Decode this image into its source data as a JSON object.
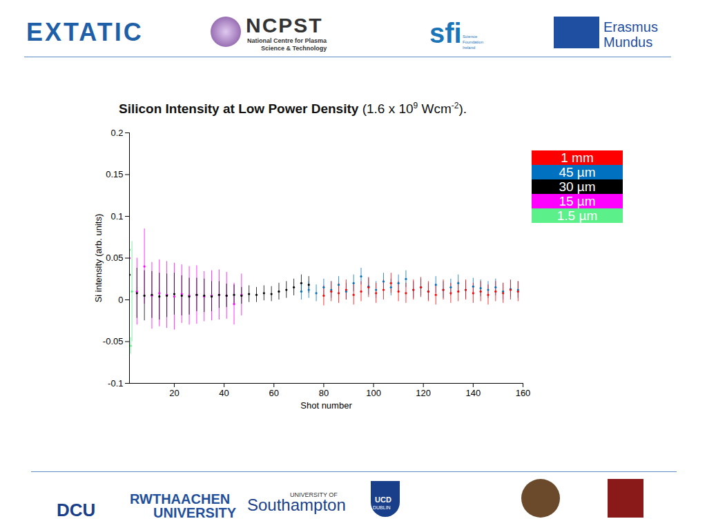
{
  "header_logos": [
    "EXTATIC",
    "NCPST",
    "National Centre for Plasma",
    "Science & Technology",
    "sfi",
    "Science",
    "Foundation",
    "Ireland",
    "Erasmus",
    "Mundus"
  ],
  "footer_logos": [
    "DCU",
    "RWTHAACHEN",
    "UNIVERSITY",
    "UNIVERSITY OF",
    "Southampton",
    "UCD",
    "DUBLIN"
  ],
  "chart_data": {
    "type": "scatter",
    "title": "Silicon Intensity at Low Power Density",
    "title_suffix": {
      "open": "(1.6 x 10",
      "exponent": "9",
      "unit": " Wcm",
      "unit_exponent": "-2",
      "close": ")."
    },
    "x_label": "Shot number",
    "y_label": "Si intensity (arb. units)",
    "xlim": [
      2,
      160
    ],
    "xticks": [
      20,
      40,
      60,
      80,
      100,
      120,
      140,
      160
    ],
    "ylim": [
      -0.1,
      0.2
    ],
    "yticks": [
      -0.1,
      -0.05,
      0,
      0.05,
      0.1,
      0.15,
      0.2
    ],
    "grid": false,
    "legend": "top-right",
    "marker": "dot",
    "series": [
      {
        "name": "1 mm",
        "color": "#ff0000",
        "x": [
          80,
          83,
          86,
          89,
          92,
          95,
          98,
          101,
          104,
          107,
          110,
          113,
          116,
          119,
          122,
          125,
          128,
          131,
          134,
          137,
          140,
          143,
          146,
          149,
          152,
          155,
          158
        ],
        "values": [
          0.005,
          0.01,
          0.008,
          0.012,
          0.006,
          0.01,
          0.015,
          0.008,
          0.012,
          0.02,
          0.01,
          0.008,
          0.012,
          0.015,
          0.01,
          0.006,
          0.012,
          0.008,
          0.01,
          0.012,
          0.008,
          0.01,
          0.006,
          0.01,
          0.008,
          0.012,
          0.01
        ],
        "errors": [
          0.012,
          0.012,
          0.012,
          0.012,
          0.012,
          0.012,
          0.012,
          0.012,
          0.012,
          0.012,
          0.012,
          0.012,
          0.012,
          0.012,
          0.012,
          0.012,
          0.012,
          0.012,
          0.012,
          0.012,
          0.012,
          0.012,
          0.012,
          0.012,
          0.012,
          0.012,
          0.012
        ]
      },
      {
        "name": "45 µm",
        "color": "#0070c0",
        "x": [
          71,
          74,
          77,
          80,
          83,
          86,
          89,
          92,
          95,
          98,
          101,
          104,
          107,
          110,
          113,
          116,
          119,
          122,
          125,
          128,
          131,
          134,
          137,
          140,
          143,
          146,
          149,
          152,
          155,
          158
        ],
        "values": [
          0.01,
          0.012,
          0.008,
          0.015,
          0.012,
          0.018,
          0.01,
          0.02,
          0.028,
          0.016,
          0.012,
          0.022,
          0.015,
          0.02,
          0.025,
          0.012,
          0.015,
          0.01,
          0.018,
          0.012,
          0.015,
          0.02,
          0.012,
          0.016,
          0.014,
          0.012,
          0.015,
          0.01,
          0.013,
          0.012
        ],
        "errors": [
          0.01,
          0.01,
          0.01,
          0.01,
          0.01,
          0.01,
          0.01,
          0.01,
          0.01,
          0.01,
          0.01,
          0.01,
          0.01,
          0.01,
          0.01,
          0.01,
          0.01,
          0.01,
          0.01,
          0.01,
          0.01,
          0.01,
          0.01,
          0.01,
          0.01,
          0.01,
          0.01,
          0.01,
          0.01,
          0.01
        ]
      },
      {
        "name": "30 µm",
        "color": "#000000",
        "x": [
          2,
          5,
          8,
          11,
          14,
          17,
          20,
          23,
          26,
          29,
          32,
          35,
          38,
          41,
          44,
          47,
          50,
          53,
          56,
          59,
          62,
          65,
          68,
          71,
          74
        ],
        "values": [
          0.03,
          0.008,
          0.005,
          0.006,
          0.004,
          0.005,
          0.007,
          0.005,
          0.004,
          0.006,
          0.005,
          0.004,
          0.006,
          0.005,
          0.006,
          0.005,
          0.007,
          0.006,
          0.008,
          0.007,
          0.01,
          0.012,
          0.015,
          0.02,
          0.018
        ],
        "errors": [
          0.05,
          0.03,
          0.03,
          0.028,
          0.028,
          0.026,
          0.025,
          0.024,
          0.022,
          0.02,
          0.02,
          0.018,
          0.016,
          0.014,
          0.012,
          0.01,
          0.01,
          0.009,
          0.009,
          0.009,
          0.01,
          0.01,
          0.01,
          0.01,
          0.01
        ]
      },
      {
        "name": "15 µm",
        "color": "#ff00ff",
        "x": [
          2,
          5,
          8,
          11,
          14,
          17,
          20,
          23,
          26,
          29,
          32,
          35,
          38,
          41,
          44,
          47
        ],
        "values": [
          0.05,
          0.01,
          0.04,
          0.005,
          0.008,
          0.006,
          0.004,
          0.007,
          0.005,
          0.006,
          0.004,
          0.005,
          0.006,
          0.005,
          -0.005,
          0.006
        ],
        "errors": [
          0.03,
          0.04,
          0.045,
          0.04,
          0.04,
          0.04,
          0.04,
          0.035,
          0.035,
          0.035,
          0.03,
          0.03,
          0.03,
          0.028,
          0.025,
          0.025
        ]
      },
      {
        "name": "1.5 µm",
        "color": "#5cf08a",
        "x": [
          2,
          2.5,
          3
        ],
        "values": [
          0.06,
          -0.055,
          0.01
        ],
        "errors": [
          0.01,
          0.01,
          0.06
        ]
      }
    ]
  }
}
